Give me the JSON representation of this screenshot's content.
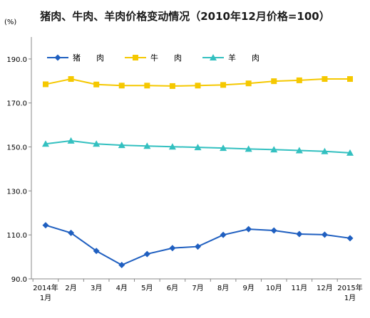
{
  "chart_data": {
    "type": "line",
    "title": "猪肉、牛肉、羊肉价格变动情况（2010年12月价格=100）",
    "unit": "(%)",
    "categories": [
      "2014年1月",
      "2月",
      "3月",
      "4月",
      "5月",
      "6月",
      "7月",
      "8月",
      "9月",
      "10月",
      "11月",
      "12月",
      "2015年1月"
    ],
    "x_tick_lines": [
      [
        "2014年",
        "1月"
      ],
      [
        "2月"
      ],
      [
        "3月"
      ],
      [
        "4月"
      ],
      [
        "5月"
      ],
      [
        "6月"
      ],
      [
        "7月"
      ],
      [
        "8月"
      ],
      [
        "9月"
      ],
      [
        "10月"
      ],
      [
        "11月"
      ],
      [
        "12月"
      ],
      [
        "2015年",
        "1月"
      ]
    ],
    "ylim": [
      90,
      200
    ],
    "yticks": [
      90,
      110,
      130,
      150,
      170,
      190
    ],
    "ytick_labels": [
      "90.0",
      "110.0",
      "130.0",
      "150.0",
      "170.0",
      "190.0"
    ],
    "grid": false,
    "legend_position": "top-left",
    "series": [
      {
        "name": "猪　　肉",
        "color": "#1f5fc0",
        "marker": "diamond",
        "values": [
          114.4,
          110.9,
          102.7,
          96.3,
          101.3,
          104.0,
          104.7,
          110.0,
          112.6,
          112.0,
          110.4,
          110.1,
          108.5
        ]
      },
      {
        "name": "牛　　肉",
        "color": "#f5c800",
        "marker": "square",
        "values": [
          178.5,
          180.9,
          178.4,
          177.9,
          177.9,
          177.7,
          177.9,
          178.2,
          178.9,
          179.9,
          180.3,
          180.9,
          180.9
        ]
      },
      {
        "name": "羊　　肉",
        "color": "#33c0c0",
        "marker": "triangle",
        "values": [
          151.4,
          152.8,
          151.4,
          150.8,
          150.4,
          150.1,
          149.8,
          149.5,
          149.1,
          148.8,
          148.4,
          148.0,
          147.3
        ]
      }
    ]
  }
}
